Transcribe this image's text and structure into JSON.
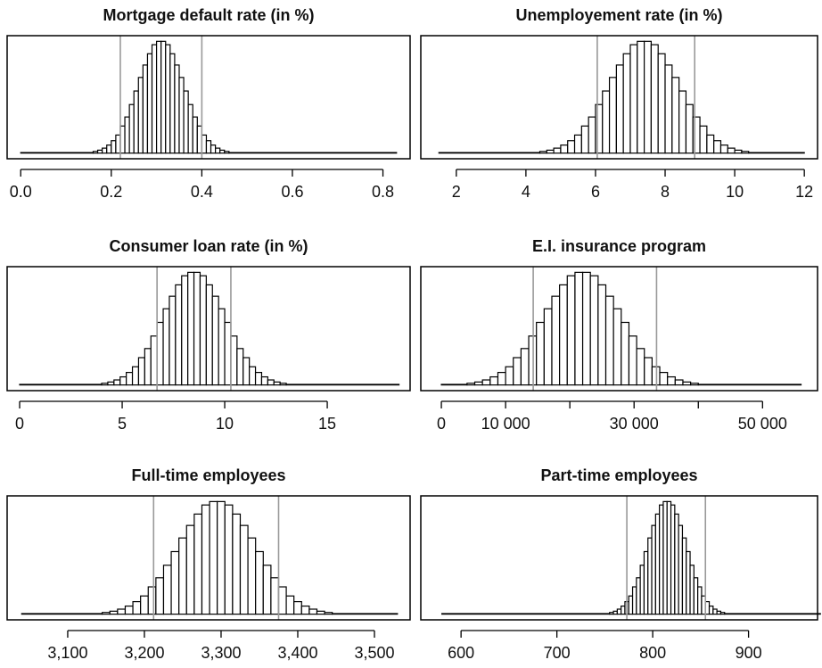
{
  "chart_data": [
    {
      "type": "histogram",
      "title": "Mortgage default rate (in %)",
      "color": "#ffffff",
      "edgecolor": "#000000",
      "vline_color": "#999999",
      "bins": [
        0,
        0.16,
        0.17,
        0.18,
        0.19,
        0.2,
        0.21,
        0.22,
        0.23,
        0.24,
        0.25,
        0.26,
        0.27,
        0.28,
        0.29,
        0.3,
        0.31,
        0.32,
        0.33,
        0.34,
        0.35,
        0.36,
        0.37,
        0.38,
        0.39,
        0.4,
        0.41,
        0.42,
        0.43,
        0.44,
        0.45,
        0.46,
        0.83
      ],
      "values": [
        0.5,
        1.5,
        2.6,
        4.4,
        7.1,
        11,
        16,
        24,
        32,
        43,
        55,
        67,
        78,
        88,
        96,
        99,
        99,
        96,
        88,
        78,
        67,
        55,
        43,
        32,
        24,
        16,
        11,
        7.1,
        4.4,
        2.6,
        1.5,
        0.5
      ],
      "vlines": [
        0.22,
        0.4
      ],
      "xlim": [
        -0.03,
        0.86
      ],
      "ylim": [
        -5,
        104
      ],
      "xticks": [
        {
          "value": 0,
          "label": "0.0"
        },
        0.2,
        0.4,
        0.6,
        0.8
      ]
    },
    {
      "type": "histogram",
      "title": "Unemployement rate (in %)",
      "color": "#ffffff",
      "edgecolor": "#000000",
      "vline_color": "#999999",
      "bins": [
        1.5,
        4.4,
        4.6,
        4.8,
        5,
        5.2,
        5.4,
        5.6,
        5.8,
        6,
        6.2,
        6.4,
        6.6,
        6.8,
        7,
        7.2,
        7.4,
        7.6,
        7.8,
        8,
        8.2,
        8.4,
        8.6,
        8.8,
        9,
        9.2,
        9.4,
        9.6,
        9.8,
        10,
        10.2,
        10.4,
        12
      ],
      "values": [
        0.5,
        1.5,
        2.6,
        4.4,
        7.1,
        11,
        16,
        24,
        32,
        43,
        55,
        67,
        78,
        88,
        96,
        99,
        99,
        96,
        88,
        78,
        67,
        55,
        43,
        32,
        24,
        16,
        11,
        7.1,
        4.4,
        2.6,
        1.5,
        0.5
      ],
      "vlines": [
        6.05,
        8.85
      ],
      "xlim": [
        0.98,
        12.38
      ],
      "ylim": [
        -5,
        104
      ],
      "xticks": [
        2,
        4,
        6,
        8,
        10,
        12
      ]
    },
    {
      "type": "histogram",
      "title": "Consumer loan rate (in %)",
      "color": "#ffffff",
      "edgecolor": "#000000",
      "vline_color": "#999999",
      "bins": [
        0,
        4,
        4.3,
        4.6,
        4.9,
        5.2,
        5.5,
        5.8,
        6.1,
        6.4,
        6.7,
        7,
        7.3,
        7.6,
        7.9,
        8.2,
        8.5,
        8.8,
        9.1,
        9.4,
        9.7,
        10,
        10.3,
        10.6,
        10.9,
        11.2,
        11.5,
        11.8,
        12.1,
        12.4,
        12.7,
        13,
        18.5
      ],
      "values": [
        0.5,
        1.5,
        2.6,
        4.4,
        7.1,
        11,
        16,
        24,
        32,
        43,
        55,
        67,
        78,
        88,
        96,
        99,
        99,
        96,
        88,
        78,
        67,
        55,
        43,
        32,
        24,
        16,
        11,
        7.1,
        4.4,
        2.6,
        1.5,
        0.5
      ],
      "vlines": [
        6.7,
        10.3
      ],
      "xlim": [
        -0.61,
        19.04
      ],
      "ylim": [
        -5,
        104
      ],
      "xticks": [
        0,
        5,
        10,
        15
      ]
    },
    {
      "type": "histogram",
      "title": "E.I. insurance program",
      "color": "#ffffff",
      "edgecolor": "#000000",
      "vline_color": "#999999",
      "bins": [
        0,
        4000,
        5200,
        6400,
        7600,
        8800,
        10000,
        11200,
        12400,
        13600,
        14800,
        16000,
        17200,
        18400,
        19600,
        20800,
        22000,
        23200,
        24400,
        25600,
        26800,
        28000,
        29200,
        30400,
        31600,
        32800,
        34000,
        35200,
        36400,
        37600,
        38800,
        40000,
        56000
      ],
      "values": [
        0.5,
        1.5,
        2.6,
        4.4,
        7.1,
        11,
        16,
        24,
        32,
        43,
        55,
        67,
        78,
        88,
        96,
        99,
        99,
        96,
        88,
        78,
        67,
        55,
        43,
        32,
        24,
        16,
        11,
        7.1,
        4.4,
        2.6,
        1.5,
        0.5
      ],
      "vlines": [
        14300,
        33500
      ],
      "xlim": [
        -3200,
        58560
      ],
      "ylim": [
        -5,
        104
      ],
      "xticks": [
        0,
        {
          "value": 10000,
          "label": "10 000"
        },
        {
          "value": 20000,
          "label": null
        },
        {
          "value": 30000,
          "label": "30 000"
        },
        {
          "value": 40000,
          "label": null
        },
        {
          "value": 50000,
          "label": "50 000"
        }
      ]
    },
    {
      "type": "histogram",
      "title": "Full-time employees",
      "color": "#ffffff",
      "edgecolor": "#000000",
      "vline_color": "#999999",
      "bins": [
        3040,
        3145,
        3155,
        3165,
        3175,
        3185,
        3195,
        3205,
        3215,
        3225,
        3235,
        3245,
        3255,
        3265,
        3275,
        3285,
        3295,
        3305,
        3315,
        3325,
        3335,
        3345,
        3355,
        3365,
        3375,
        3385,
        3395,
        3405,
        3415,
        3425,
        3435,
        3445,
        3530
      ],
      "values": [
        0.5,
        1.5,
        2.6,
        4.4,
        7.1,
        11,
        16,
        24,
        32,
        43,
        55,
        67,
        78,
        88,
        96,
        99,
        99,
        96,
        88,
        78,
        67,
        55,
        43,
        32,
        24,
        16,
        11,
        7.1,
        4.4,
        2.6,
        1.5,
        0.5
      ],
      "vlines": [
        3212,
        3375
      ],
      "xlim": [
        3021,
        3546.5
      ],
      "ylim": [
        -5,
        104
      ],
      "xticks": [
        {
          "value": 3100,
          "label": "3,100"
        },
        {
          "value": 3200,
          "label": "3,200"
        },
        {
          "value": 3300,
          "label": "3,300"
        },
        {
          "value": 3400,
          "label": "3,400"
        },
        {
          "value": 3500,
          "label": "3,500"
        }
      ]
    },
    {
      "type": "histogram",
      "title": "Part-time employees",
      "color": "#ffffff",
      "edgecolor": "#000000",
      "vline_color": "#999999",
      "bins": [
        580,
        755,
        759,
        763,
        767,
        771,
        775,
        779,
        783,
        787,
        791,
        795,
        799,
        803,
        807,
        811,
        815,
        819,
        823,
        827,
        831,
        835,
        839,
        843,
        847,
        851,
        855,
        859,
        863,
        867,
        871,
        875,
        975
      ],
      "values": [
        0.5,
        1.5,
        2.6,
        4.4,
        7.1,
        11,
        16,
        24,
        32,
        43,
        55,
        67,
        78,
        88,
        96,
        99,
        99,
        96,
        88,
        78,
        67,
        55,
        43,
        32,
        24,
        16,
        11,
        7.1,
        4.4,
        2.6,
        1.5,
        0.5
      ],
      "vlines": [
        773,
        855
      ],
      "xlim": [
        558,
        972
      ],
      "ylim": [
        -5,
        104
      ],
      "xticks": [
        600,
        700,
        800,
        900
      ]
    }
  ]
}
